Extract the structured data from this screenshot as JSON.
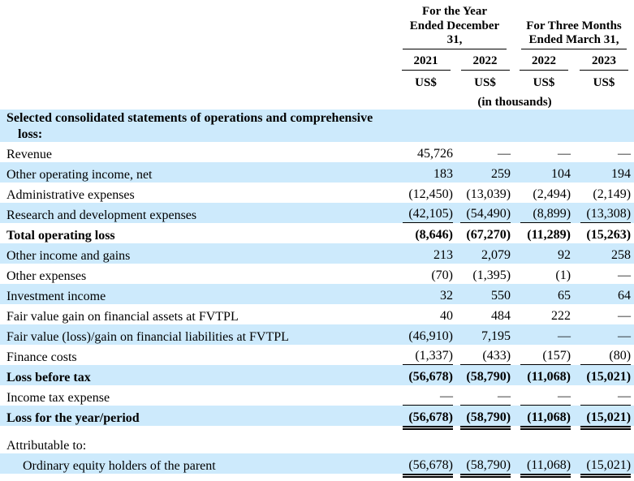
{
  "document": {
    "header": {
      "groups": [
        {
          "line1": "For the Year",
          "line2": "Ended December 31,"
        },
        {
          "line1": "For Three Months",
          "line2": "Ended March 31,"
        }
      ],
      "years": [
        "2021",
        "2022",
        "2022",
        "2023"
      ],
      "currency_labels": [
        "US$",
        "US$",
        "US$",
        "US$"
      ],
      "units_note": "(in thousands)"
    },
    "rows": [
      {
        "label": "Selected consolidated statements of operations and comprehensive loss:",
        "values": [
          "",
          "",
          "",
          ""
        ]
      },
      {
        "label": "Revenue",
        "values": [
          "45,726",
          "—",
          "—",
          "—"
        ]
      },
      {
        "label": "Other operating income, net",
        "values": [
          "183",
          "259",
          "104",
          "194"
        ]
      },
      {
        "label": "Administrative expenses",
        "values": [
          "(12,450)",
          "(13,039)",
          "(2,494)",
          "(2,149)"
        ]
      },
      {
        "label": "Research and development expenses",
        "values": [
          "(42,105)",
          "(54,490)",
          "(8,899)",
          "(13,308)"
        ]
      },
      {
        "label": "Total operating loss",
        "values": [
          "(8,646)",
          "(67,270)",
          "(11,289)",
          "(15,263)"
        ]
      },
      {
        "label": "Other income and gains",
        "values": [
          "213",
          "2,079",
          "92",
          "258"
        ]
      },
      {
        "label": "Other expenses",
        "values": [
          "(70)",
          "(1,395)",
          "(1)",
          "—"
        ]
      },
      {
        "label": "Investment income",
        "values": [
          "32",
          "550",
          "65",
          "64"
        ]
      },
      {
        "label": "Fair value gain on financial assets at FVTPL",
        "values": [
          "40",
          "484",
          "222",
          "—"
        ]
      },
      {
        "label": "Fair value (loss)/gain on financial liabilities at FVTPL",
        "values": [
          "(46,910)",
          "7,195",
          "—",
          "—"
        ]
      },
      {
        "label": "Finance costs",
        "values": [
          "(1,337)",
          "(433)",
          "(157)",
          "(80)"
        ]
      },
      {
        "label": "Loss before tax",
        "values": [
          "(56,678)",
          "(58,790)",
          "(11,068)",
          "(15,021)"
        ]
      },
      {
        "label": "Income tax expense",
        "values": [
          "—",
          "—",
          "—",
          "—"
        ]
      },
      {
        "label": "Loss for the year/period",
        "values": [
          "(56,678)",
          "(58,790)",
          "(11,068)",
          "(15,021)"
        ]
      },
      {
        "label": "Attributable to:",
        "values": [
          "",
          "",
          "",
          ""
        ]
      },
      {
        "label": "Ordinary equity holders of the parent",
        "values": [
          "(56,678)",
          "(58,790)",
          "(11,068)",
          "(15,021)"
        ]
      }
    ],
    "colors": {
      "row_highlight": "#cdeafc",
      "text": "#000000"
    }
  }
}
